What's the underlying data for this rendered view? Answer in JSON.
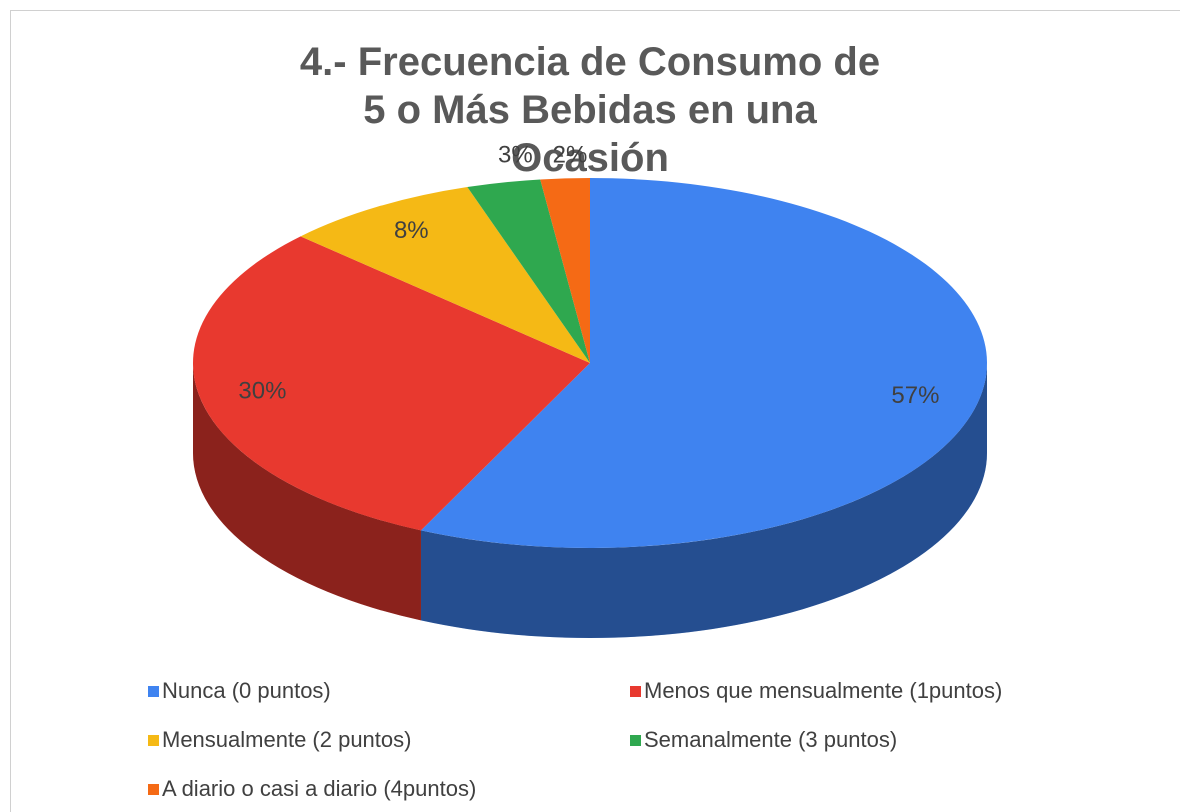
{
  "chart_data": {
    "type": "pie3d",
    "title": "4.- Frecuencia de Consumo de 5 o Más Bebidas en una Ocasión",
    "categories": [
      "Nunca (0 puntos)",
      "Menos que mensualmente (1puntos)",
      "Mensualmente  (2 puntos)",
      "Semanalmente  (3 puntos)",
      "A diario o casi a diario (4puntos)"
    ],
    "values": [
      57,
      30,
      8,
      3,
      2
    ],
    "value_labels": [
      "57%",
      "30%",
      "8%",
      "3%",
      "2%"
    ],
    "colors": [
      "#3f83f0",
      "#e8392f",
      "#f5b915",
      "#2fa84f",
      "#f56a15"
    ],
    "legend": "bottom"
  }
}
